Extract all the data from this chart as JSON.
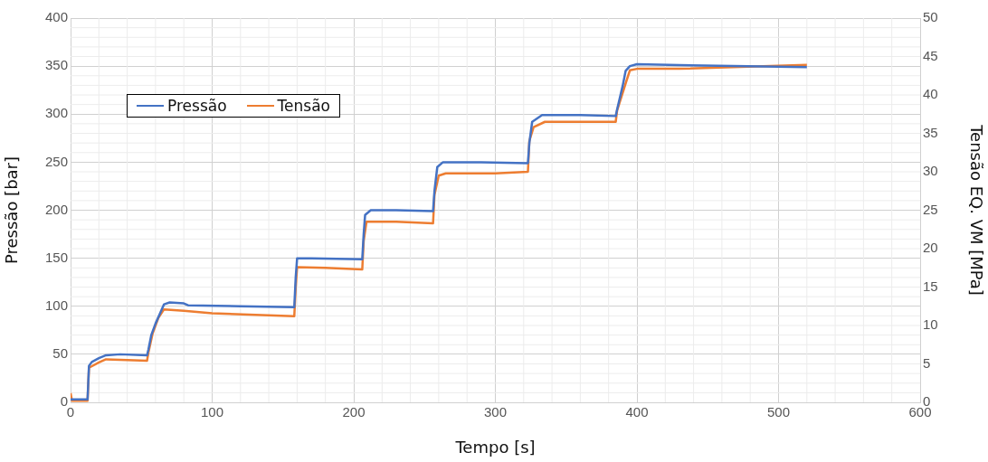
{
  "chart_data": {
    "type": "line",
    "xlabel": "Tempo [s]",
    "ylabel": "Pressão [bar]",
    "y2label": "Tensão EQ. VM [MPa]",
    "xlim": [
      0,
      600
    ],
    "xticks": [
      0,
      100,
      200,
      300,
      400,
      500,
      600
    ],
    "ylim": [
      0,
      400
    ],
    "yticks": [
      0,
      50,
      100,
      150,
      200,
      250,
      300,
      350,
      400
    ],
    "y2lim": [
      0,
      50
    ],
    "y2ticks": [
      0,
      5,
      10,
      15,
      20,
      25,
      30,
      35,
      40,
      45,
      50
    ],
    "grid": true,
    "legend": "top left",
    "marker": "none",
    "line_style": "solid",
    "series": [
      {
        "name": "Pressão",
        "color": "#4472c4",
        "x": [
          0,
          12,
          13,
          15,
          20,
          25,
          35,
          54,
          55,
          57,
          60,
          63,
          66,
          70,
          80,
          83,
          120,
          158,
          159,
          160,
          170,
          206,
          207,
          208,
          212,
          230,
          256,
          257,
          259,
          263,
          290,
          323,
          324,
          326,
          333,
          360,
          385,
          386,
          390,
          392,
          395,
          400,
          430,
          520
        ],
        "values": [
          3,
          3,
          38,
          42,
          46,
          49,
          50,
          49,
          55,
          70,
          82,
          92,
          102,
          104,
          103,
          101,
          100,
          99,
          130,
          150,
          150,
          149,
          175,
          195,
          200,
          200,
          199,
          220,
          245,
          250,
          250,
          249,
          270,
          292,
          299,
          299,
          298,
          305,
          330,
          345,
          350,
          352,
          351,
          349
        ]
      },
      {
        "name": "Tensão",
        "color": "#ed7d31",
        "axis": "y2",
        "x": [
          0,
          1,
          12,
          13,
          20,
          25,
          40,
          54,
          55,
          58,
          62,
          66,
          80,
          100,
          158,
          159,
          160,
          180,
          206,
          207,
          209,
          230,
          256,
          257,
          260,
          265,
          300,
          323,
          324,
          327,
          335,
          385,
          386,
          392,
          395,
          400,
          430,
          520
        ],
        "values": [
          1.2,
          0.2,
          0.2,
          4.5,
          5.2,
          5.6,
          5.5,
          5.4,
          6.5,
          9,
          11,
          12.1,
          11.9,
          11.6,
          11.2,
          15,
          17.6,
          17.5,
          17.3,
          21,
          23.5,
          23.5,
          23.3,
          27,
          29.5,
          29.8,
          29.8,
          30,
          34,
          35.8,
          36.5,
          36.5,
          38,
          41.5,
          43.2,
          43.4,
          43.4,
          43.9
        ]
      }
    ]
  }
}
